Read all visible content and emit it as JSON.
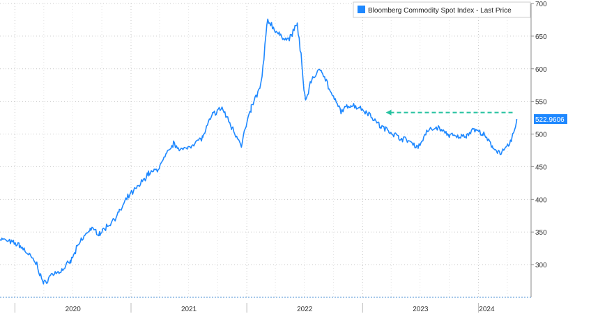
{
  "chart_data": {
    "type": "line",
    "title": "",
    "xlabel": "",
    "ylabel": "",
    "ylim": [
      250,
      700
    ],
    "yticks": [
      300,
      350,
      400,
      450,
      500,
      550,
      600,
      650,
      700
    ],
    "xtick_labels": [
      "2020",
      "2021",
      "2022",
      "2023",
      "2024"
    ],
    "xlim": [
      "2019-11-15",
      "2024-06-15"
    ],
    "grid": true,
    "legend": {
      "position": "top-right",
      "entries": [
        "Bloomberg Commodity Spot Index - Last Price"
      ]
    },
    "last_value_label": "522.9606",
    "colors": {
      "series": "#1e88ff",
      "marker": "#1e88ff",
      "reference": "#27c2a0",
      "grid": "#c8c8c8"
    },
    "series": [
      {
        "name": "Bloomberg Commodity Spot Index - Last Price",
        "x": [
          "2019-11-15",
          "2019-12-15",
          "2020-01-15",
          "2020-02-15",
          "2020-03-10",
          "2020-04-01",
          "2020-04-25",
          "2020-05-25",
          "2020-06-25",
          "2020-07-25",
          "2020-08-25",
          "2020-09-25",
          "2020-10-25",
          "2020-11-25",
          "2020-12-25",
          "2021-01-25",
          "2021-02-25",
          "2021-03-25",
          "2021-04-25",
          "2021-05-15",
          "2021-06-15",
          "2021-07-15",
          "2021-08-15",
          "2021-09-15",
          "2021-10-15",
          "2021-11-15",
          "2021-12-15",
          "2022-01-15",
          "2022-02-15",
          "2022-03-08",
          "2022-04-15",
          "2022-05-15",
          "2022-06-09",
          "2022-07-05",
          "2022-07-25",
          "2022-08-25",
          "2022-09-25",
          "2022-10-25",
          "2022-11-25",
          "2022-12-25",
          "2023-01-25",
          "2023-02-25",
          "2023-03-25",
          "2023-04-25",
          "2023-05-25",
          "2023-06-25",
          "2023-07-25",
          "2023-08-25",
          "2023-09-25",
          "2023-10-25",
          "2023-11-25",
          "2023-12-15",
          "2024-01-15",
          "2024-02-15",
          "2024-03-15",
          "2024-04-15",
          "2024-05-01"
        ],
        "values": [
          340,
          335,
          330,
          315,
          300,
          270,
          285,
          290,
          305,
          335,
          355,
          348,
          362,
          380,
          405,
          420,
          440,
          445,
          470,
          485,
          475,
          485,
          495,
          530,
          540,
          510,
          485,
          540,
          575,
          675,
          650,
          645,
          670,
          550,
          585,
          600,
          560,
          535,
          545,
          540,
          530,
          512,
          505,
          495,
          490,
          480,
          505,
          510,
          500,
          495,
          498,
          508,
          500,
          480,
          470,
          490,
          523
        ]
      }
    ],
    "reference_line": {
      "value": 533,
      "x_start": "2023-03-15",
      "x_end": "2024-04-20",
      "style": "dashed-arrow"
    }
  }
}
